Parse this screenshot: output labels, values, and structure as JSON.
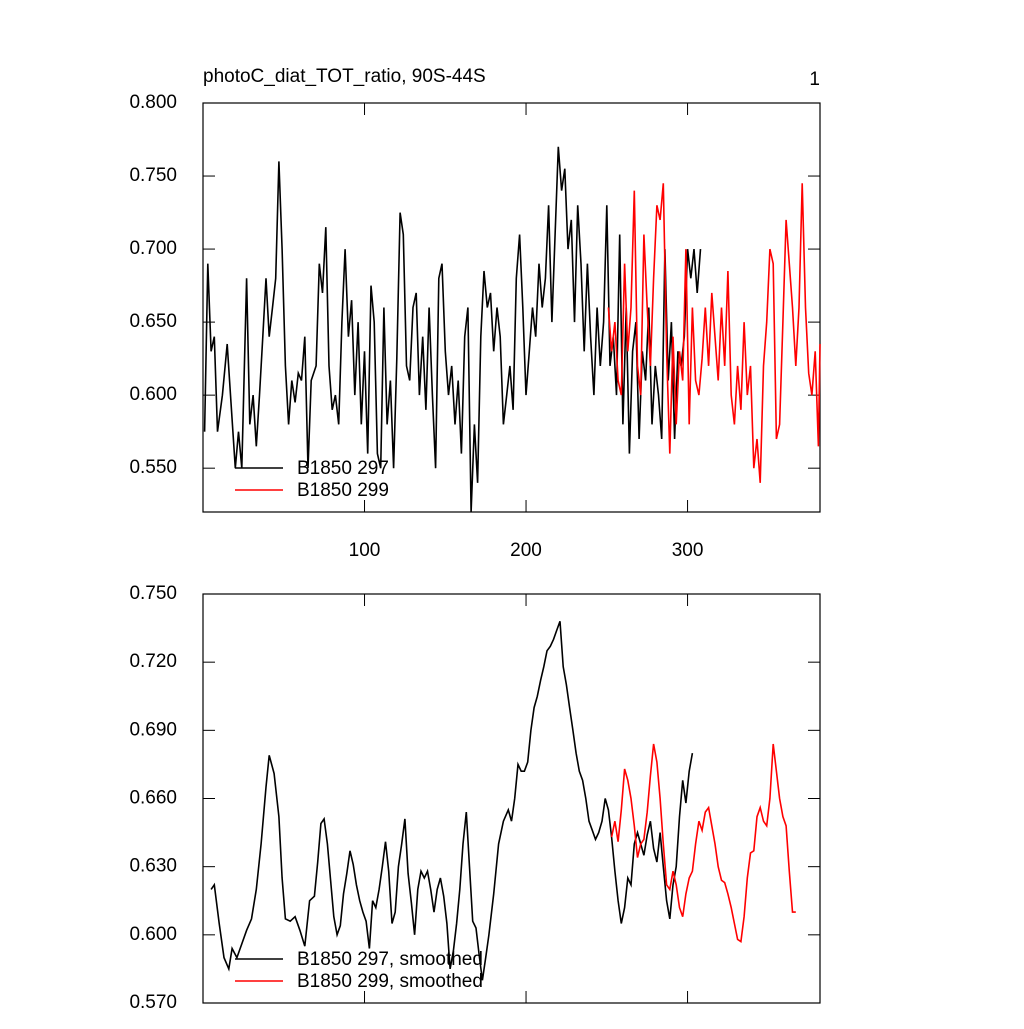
{
  "chart_data": [
    {
      "type": "line",
      "title": "photoC_diat_TOT_ratio, 90S-44S",
      "panel_label": "1",
      "xlim": [
        0,
        382
      ],
      "xticks": [
        100,
        200,
        300
      ],
      "ylim": [
        0.52,
        0.8
      ],
      "yticks": [
        {
          "value": 0.55,
          "label": "0.550"
        },
        {
          "value": 0.6,
          "label": "0.600"
        },
        {
          "value": 0.65,
          "label": "0.650"
        },
        {
          "value": 0.7,
          "label": "0.700"
        },
        {
          "value": 0.75,
          "label": "0.750"
        },
        {
          "value": 0.8,
          "label": "0.800"
        }
      ],
      "series": [
        {
          "name": "B1850 297",
          "color": "#000000",
          "x": [
            1,
            3,
            5,
            7,
            9,
            12,
            15,
            17,
            20,
            22,
            24,
            27,
            29,
            31,
            33,
            35,
            37,
            39,
            41,
            43,
            45,
            47,
            49,
            51,
            53,
            55,
            57,
            59,
            61,
            63,
            65,
            67,
            70,
            72,
            74,
            76,
            78,
            80,
            82,
            84,
            86,
            88,
            90,
            92,
            94,
            96,
            98,
            100,
            102,
            104,
            106,
            108,
            110,
            112,
            114,
            116,
            118,
            120,
            122,
            124,
            126,
            128,
            130,
            132,
            134,
            136,
            138,
            140,
            142,
            144,
            146,
            148,
            150,
            152,
            154,
            156,
            158,
            160,
            162,
            164,
            166,
            168,
            170,
            172,
            174,
            176,
            178,
            180,
            182,
            184,
            186,
            188,
            190,
            192,
            194,
            196,
            198,
            200,
            202,
            204,
            206,
            208,
            210,
            212,
            214,
            216,
            218,
            220,
            222,
            224,
            226,
            228,
            230,
            232,
            234,
            236,
            238,
            240,
            242,
            244,
            246,
            248,
            250,
            252,
            254,
            256,
            258,
            260,
            262,
            264,
            266,
            268,
            270,
            272,
            274,
            276,
            278,
            280,
            282,
            284,
            286,
            288,
            290,
            292,
            294,
            296,
            298,
            300,
            302,
            304,
            306,
            308
          ],
          "values": [
            0.575,
            0.69,
            0.63,
            0.64,
            0.575,
            0.6,
            0.635,
            0.6,
            0.55,
            0.575,
            0.55,
            0.68,
            0.58,
            0.6,
            0.565,
            0.6,
            0.64,
            0.68,
            0.64,
            0.66,
            0.68,
            0.76,
            0.7,
            0.62,
            0.58,
            0.61,
            0.595,
            0.615,
            0.61,
            0.64,
            0.55,
            0.61,
            0.62,
            0.69,
            0.67,
            0.715,
            0.62,
            0.59,
            0.6,
            0.58,
            0.65,
            0.7,
            0.64,
            0.665,
            0.6,
            0.65,
            0.58,
            0.63,
            0.56,
            0.675,
            0.65,
            0.56,
            0.55,
            0.66,
            0.58,
            0.61,
            0.55,
            0.625,
            0.725,
            0.71,
            0.62,
            0.61,
            0.66,
            0.67,
            0.6,
            0.64,
            0.59,
            0.66,
            0.6,
            0.55,
            0.68,
            0.69,
            0.63,
            0.6,
            0.62,
            0.58,
            0.61,
            0.56,
            0.64,
            0.66,
            0.52,
            0.58,
            0.54,
            0.64,
            0.685,
            0.66,
            0.67,
            0.63,
            0.66,
            0.64,
            0.58,
            0.6,
            0.62,
            0.59,
            0.68,
            0.71,
            0.66,
            0.6,
            0.63,
            0.66,
            0.64,
            0.69,
            0.66,
            0.68,
            0.73,
            0.65,
            0.71,
            0.77,
            0.74,
            0.755,
            0.7,
            0.72,
            0.65,
            0.73,
            0.69,
            0.63,
            0.69,
            0.64,
            0.6,
            0.66,
            0.62,
            0.65,
            0.73,
            0.62,
            0.64,
            0.6,
            0.71,
            0.58,
            0.66,
            0.56,
            0.63,
            0.65,
            0.57,
            0.63,
            0.61,
            0.66,
            0.58,
            0.62,
            0.6,
            0.57,
            0.7,
            0.61,
            0.65,
            0.57,
            0.63,
            0.62,
            0.64,
            0.7,
            0.68,
            0.7,
            0.67,
            0.7
          ]
        },
        {
          "name": "B1850 299",
          "color": "#ff0000",
          "x": [
            251,
            253,
            255,
            257,
            259,
            261,
            263,
            265,
            267,
            269,
            271,
            273,
            275,
            277,
            279,
            281,
            283,
            285,
            287,
            289,
            291,
            293,
            295,
            297,
            299,
            301,
            303,
            305,
            307,
            309,
            311,
            313,
            315,
            317,
            319,
            321,
            323,
            325,
            327,
            329,
            331,
            333,
            335,
            337,
            339,
            341,
            343,
            345,
            347,
            349,
            351,
            353,
            355,
            357,
            359,
            361,
            363,
            365,
            367,
            369,
            371,
            373,
            375,
            377,
            379,
            381,
            382
          ],
          "values": [
            0.66,
            0.63,
            0.65,
            0.61,
            0.6,
            0.69,
            0.63,
            0.66,
            0.74,
            0.62,
            0.6,
            0.71,
            0.66,
            0.62,
            0.68,
            0.73,
            0.72,
            0.745,
            0.63,
            0.56,
            0.64,
            0.58,
            0.63,
            0.61,
            0.7,
            0.58,
            0.66,
            0.61,
            0.6,
            0.625,
            0.66,
            0.62,
            0.67,
            0.64,
            0.61,
            0.66,
            0.62,
            0.685,
            0.6,
            0.58,
            0.62,
            0.59,
            0.65,
            0.6,
            0.62,
            0.55,
            0.57,
            0.54,
            0.62,
            0.65,
            0.7,
            0.69,
            0.57,
            0.58,
            0.65,
            0.72,
            0.69,
            0.66,
            0.62,
            0.66,
            0.745,
            0.66,
            0.615,
            0.6,
            0.63,
            0.565,
            0.635
          ]
        }
      ]
    },
    {
      "type": "line",
      "xlim": [
        0,
        382
      ],
      "xticks": [
        100,
        200,
        300
      ],
      "ylim": [
        0.57,
        0.75
      ],
      "yticks": [
        {
          "value": 0.57,
          "label": "0.570"
        },
        {
          "value": 0.6,
          "label": "0.600"
        },
        {
          "value": 0.63,
          "label": "0.630"
        },
        {
          "value": 0.66,
          "label": "0.660"
        },
        {
          "value": 0.69,
          "label": "0.690"
        },
        {
          "value": 0.72,
          "label": "0.720"
        },
        {
          "value": 0.75,
          "label": "0.750"
        }
      ],
      "series": [
        {
          "name": "B1850 297, smoothed",
          "color": "#000000",
          "x": [
            5,
            7,
            10,
            13,
            16,
            18,
            21,
            24,
            27,
            30,
            33,
            36,
            39,
            41,
            44,
            47,
            49,
            51,
            54,
            57,
            60,
            63,
            66,
            69,
            71,
            73,
            75,
            77,
            79,
            81,
            83,
            85,
            87,
            89,
            91,
            93,
            95,
            97,
            99,
            101,
            103,
            105,
            107,
            109,
            111,
            113,
            115,
            117,
            119,
            121,
            123,
            125,
            127,
            129,
            131,
            133,
            135,
            137,
            139,
            141,
            143,
            145,
            147,
            149,
            151,
            153,
            155,
            157,
            159,
            161,
            163,
            165,
            167,
            169,
            171,
            173,
            175,
            177,
            180,
            183,
            186,
            189,
            191,
            193,
            195,
            197,
            199,
            201,
            203,
            205,
            207,
            209,
            211,
            213,
            215,
            217,
            219,
            221,
            223,
            225,
            227,
            229,
            231,
            233,
            235,
            237,
            239,
            241,
            243,
            245,
            247,
            249,
            251,
            253,
            255,
            257,
            259,
            261,
            263,
            265,
            267,
            269,
            271,
            273,
            275,
            277,
            279,
            281,
            283,
            285,
            287,
            289,
            291,
            293,
            295,
            297,
            299,
            301,
            303
          ],
          "values": [
            0.62,
            0.622,
            0.605,
            0.59,
            0.585,
            0.594,
            0.59,
            0.596,
            0.602,
            0.607,
            0.62,
            0.64,
            0.665,
            0.679,
            0.671,
            0.652,
            0.625,
            0.607,
            0.606,
            0.608,
            0.602,
            0.595,
            0.615,
            0.617,
            0.632,
            0.649,
            0.651,
            0.64,
            0.624,
            0.608,
            0.6,
            0.604,
            0.618,
            0.627,
            0.637,
            0.631,
            0.622,
            0.615,
            0.61,
            0.606,
            0.594,
            0.615,
            0.612,
            0.62,
            0.63,
            0.641,
            0.628,
            0.605,
            0.61,
            0.63,
            0.64,
            0.651,
            0.627,
            0.614,
            0.6,
            0.62,
            0.628,
            0.625,
            0.628,
            0.62,
            0.61,
            0.62,
            0.625,
            0.617,
            0.605,
            0.585,
            0.593,
            0.605,
            0.62,
            0.64,
            0.654,
            0.63,
            0.606,
            0.603,
            0.591,
            0.58,
            0.59,
            0.6,
            0.618,
            0.64,
            0.65,
            0.655,
            0.65,
            0.66,
            0.675,
            0.672,
            0.672,
            0.676,
            0.69,
            0.7,
            0.705,
            0.712,
            0.718,
            0.725,
            0.727,
            0.73,
            0.734,
            0.738,
            0.718,
            0.71,
            0.7,
            0.69,
            0.68,
            0.672,
            0.668,
            0.66,
            0.65,
            0.646,
            0.642,
            0.645,
            0.65,
            0.66,
            0.655,
            0.643,
            0.628,
            0.615,
            0.605,
            0.612,
            0.625,
            0.622,
            0.64,
            0.645,
            0.64,
            0.635,
            0.644,
            0.65,
            0.638,
            0.632,
            0.645,
            0.63,
            0.615,
            0.607,
            0.622,
            0.63,
            0.652,
            0.668,
            0.658,
            0.672,
            0.68
          ]
        },
        {
          "name": "B1850 299, smoothed",
          "color": "#ff0000",
          "x": [
            253,
            255,
            257,
            259,
            261,
            263,
            265,
            267,
            269,
            271,
            273,
            275,
            277,
            279,
            281,
            283,
            285,
            287,
            289,
            291,
            293,
            295,
            297,
            299,
            301,
            303,
            305,
            307,
            309,
            311,
            313,
            315,
            317,
            319,
            321,
            323,
            325,
            327,
            329,
            331,
            333,
            335,
            337,
            339,
            341,
            343,
            345,
            347,
            349,
            351,
            353,
            355,
            357,
            359,
            361,
            363,
            365,
            367
          ],
          "values": [
            0.643,
            0.65,
            0.641,
            0.655,
            0.673,
            0.668,
            0.66,
            0.648,
            0.634,
            0.64,
            0.642,
            0.654,
            0.67,
            0.684,
            0.676,
            0.66,
            0.64,
            0.622,
            0.62,
            0.628,
            0.622,
            0.612,
            0.608,
            0.618,
            0.625,
            0.628,
            0.64,
            0.65,
            0.646,
            0.654,
            0.656,
            0.648,
            0.64,
            0.63,
            0.624,
            0.623,
            0.618,
            0.612,
            0.605,
            0.598,
            0.597,
            0.608,
            0.625,
            0.636,
            0.637,
            0.652,
            0.656,
            0.65,
            0.648,
            0.66,
            0.684,
            0.672,
            0.66,
            0.652,
            0.648,
            0.628,
            0.61,
            0.61
          ]
        }
      ]
    }
  ]
}
